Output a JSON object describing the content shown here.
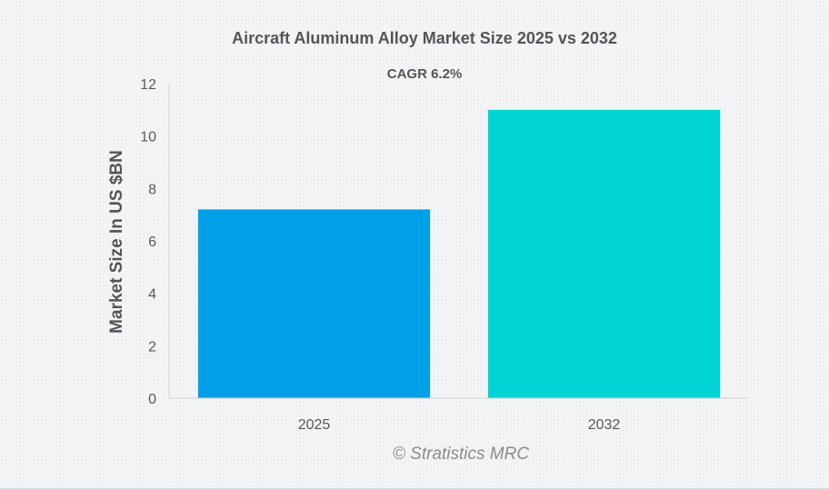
{
  "chart_data": {
    "type": "bar",
    "title": "Aircraft Aluminum Alloy Market Size 2025 vs 2032",
    "subtitle": "CAGR 6.2%",
    "ylabel": "Market Size In US $BN",
    "xlabel": "",
    "categories": [
      "2025",
      "2032"
    ],
    "values": [
      7.2,
      11.0
    ],
    "ylim": [
      0,
      12
    ],
    "yticks": [
      "0",
      "2",
      "4",
      "6",
      "8",
      "10",
      "12"
    ],
    "grid": false,
    "legend": "none",
    "colors": [
      "#009fe8",
      "#00d4d4"
    ]
  },
  "footer": {
    "credit": "© Stratistics MRC"
  }
}
